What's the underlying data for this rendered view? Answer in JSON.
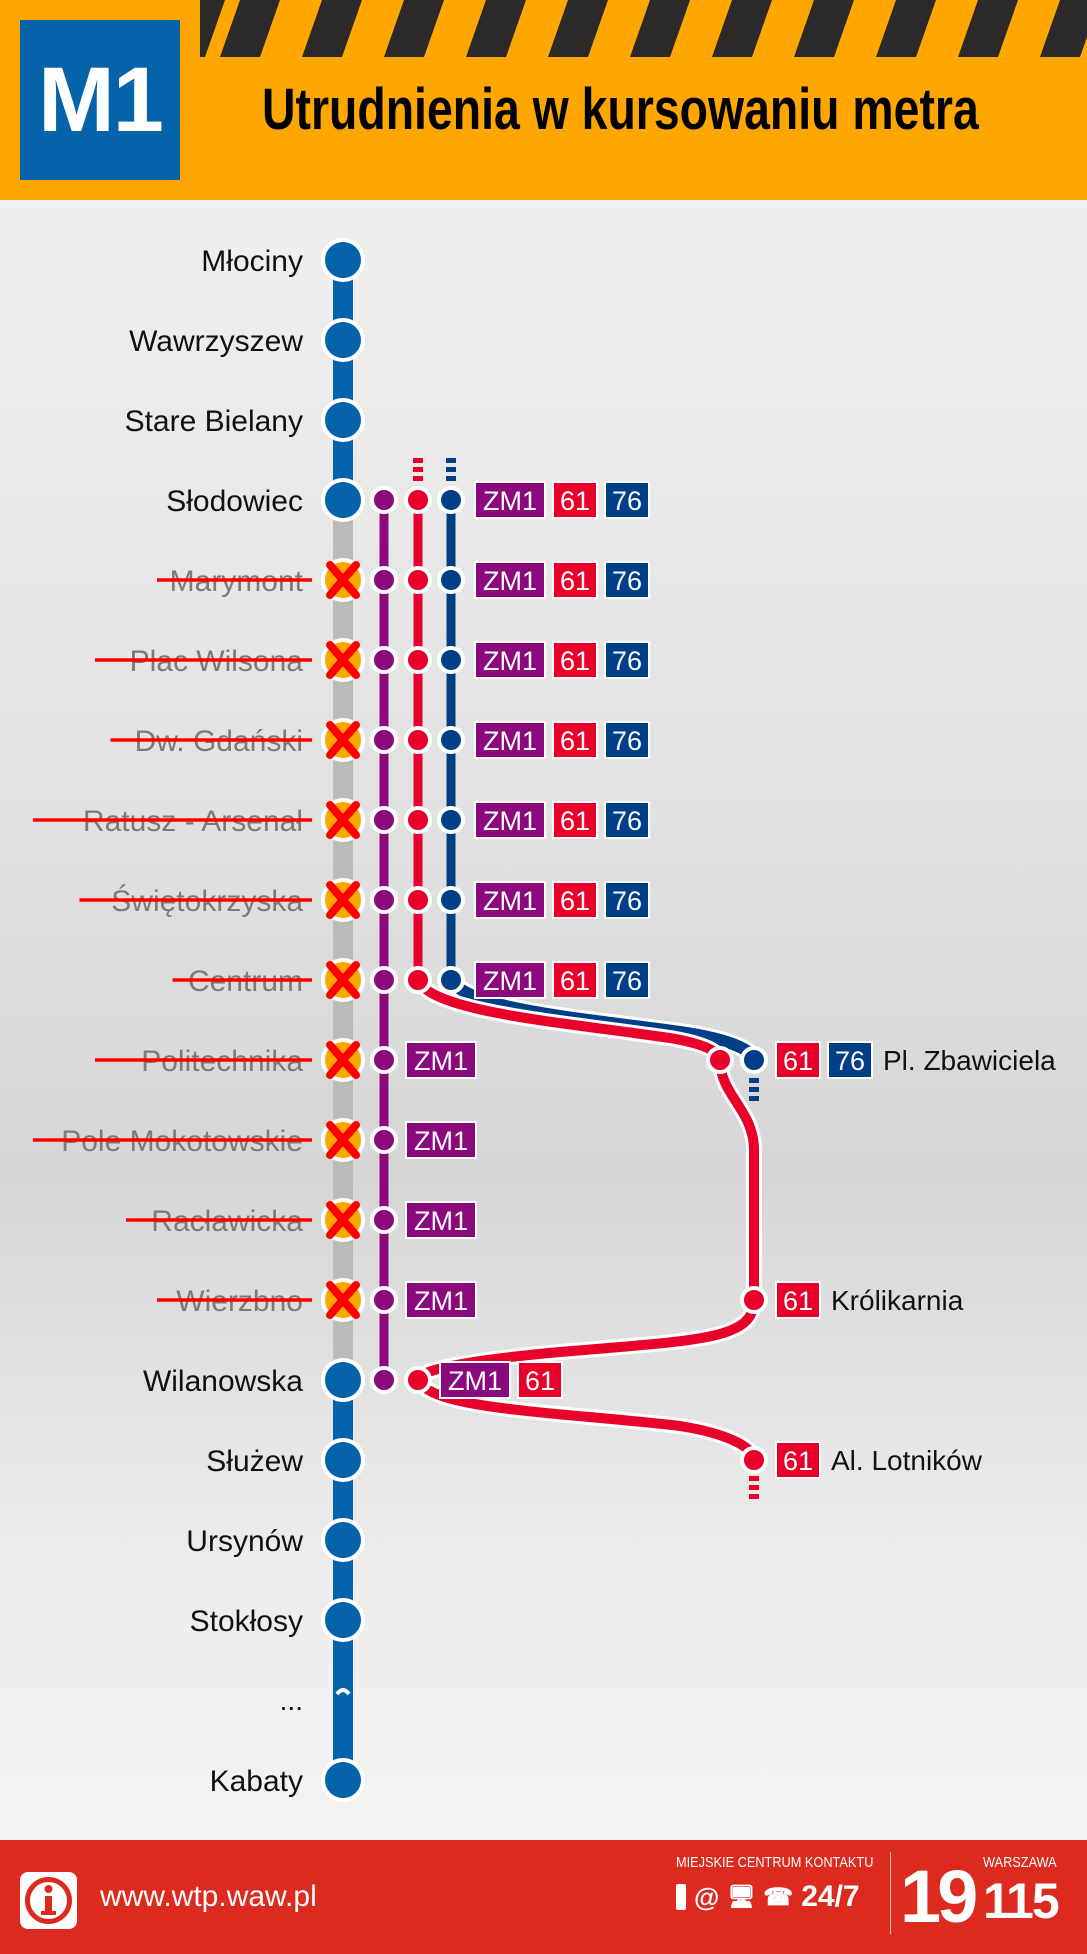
{
  "header": {
    "line_badge": "M1",
    "title": "Utrudnienia w kursowaniu metra"
  },
  "colors": {
    "header_bg": "#FFA600",
    "metro_blue": "#0563A9",
    "zm1_purple": "#8A0A7E",
    "bus61_red": "#E8002A",
    "bus76_blue": "#003F87",
    "closed_line": "#BBBBBB",
    "footer_bg": "#DC2A1E"
  },
  "stations": [
    {
      "name": "Młociny",
      "status": "open",
      "lines": []
    },
    {
      "name": "Wawrzyszew",
      "status": "open",
      "lines": []
    },
    {
      "name": "Stare Bielany",
      "status": "open",
      "lines": []
    },
    {
      "name": "Słodowiec",
      "status": "open",
      "lines": [
        "ZM1",
        "61",
        "76"
      ]
    },
    {
      "name": "Marymont",
      "status": "closed",
      "lines": [
        "ZM1",
        "61",
        "76"
      ]
    },
    {
      "name": "Plac Wilsona",
      "status": "closed",
      "lines": [
        "ZM1",
        "61",
        "76"
      ]
    },
    {
      "name": "Dw. Gdański",
      "status": "closed",
      "lines": [
        "ZM1",
        "61",
        "76"
      ]
    },
    {
      "name": "Ratusz - Arsenał",
      "status": "closed",
      "lines": [
        "ZM1",
        "61",
        "76"
      ]
    },
    {
      "name": "Świętokrzyska",
      "status": "closed",
      "lines": [
        "ZM1",
        "61",
        "76"
      ]
    },
    {
      "name": "Centrum",
      "status": "closed",
      "lines": [
        "ZM1",
        "61",
        "76"
      ]
    },
    {
      "name": "Politechnika",
      "status": "closed",
      "lines": [
        "ZM1"
      ]
    },
    {
      "name": "Pole Mokotowskie",
      "status": "closed",
      "lines": [
        "ZM1"
      ]
    },
    {
      "name": "Racławicka",
      "status": "closed",
      "lines": [
        "ZM1"
      ]
    },
    {
      "name": "Wierzbno",
      "status": "closed",
      "lines": [
        "ZM1"
      ]
    },
    {
      "name": "Wilanowska",
      "status": "open",
      "lines": [
        "ZM1",
        "61"
      ]
    },
    {
      "name": "Służew",
      "status": "open",
      "lines": []
    },
    {
      "name": "Ursynów",
      "status": "open",
      "lines": []
    },
    {
      "name": "Stokłosy",
      "status": "open",
      "lines": []
    },
    {
      "name": "...",
      "status": "ellipsis",
      "lines": []
    },
    {
      "name": "Kabaty",
      "status": "open",
      "lines": []
    }
  ],
  "bus_stops": [
    {
      "name": "Pl. Zbawiciela",
      "lines": [
        "61",
        "76"
      ]
    },
    {
      "name": "Królikarnia",
      "lines": [
        "61"
      ]
    },
    {
      "name": "Al. Lotników",
      "lines": [
        "61"
      ]
    }
  ],
  "footer": {
    "info_icon": "info-icon",
    "url": "www.wtp.waw.pl",
    "contact_label": "MIEJSKIE CENTRUM KONTAKTU",
    "contact_icons": [
      "phone-icon",
      "at-icon",
      "computer-icon",
      "telephone-icon"
    ],
    "availability": "24/7",
    "hotline_prefix": "19",
    "hotline_city": "WARSZAWA",
    "hotline_number": "115"
  }
}
